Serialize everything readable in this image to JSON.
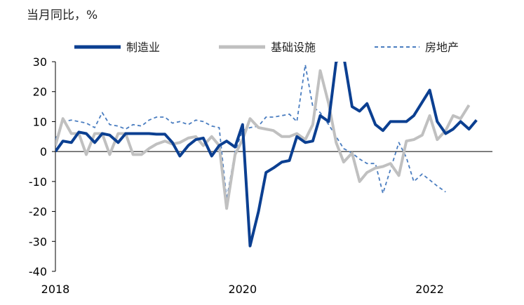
{
  "chart_data": {
    "type": "line",
    "title": "",
    "unit_label": "当月同比，%",
    "xlabel": "",
    "ylabel": "",
    "ylim": [
      -40,
      30
    ],
    "yticks": [
      30,
      20,
      10,
      0,
      -10,
      -20,
      -30,
      -40
    ],
    "xlim": [
      2018.0,
      2022.67
    ],
    "xticks": [
      {
        "value": 2018,
        "label": "2018"
      },
      {
        "value": 2020,
        "label": "2020"
      },
      {
        "value": 2022,
        "label": "2022"
      }
    ],
    "grid": false,
    "legend_position": "top",
    "series": [
      {
        "name": "制造业",
        "color": "#0b3f91",
        "style": "solid",
        "x": [
          2018.0,
          2018.08,
          2018.17,
          2018.25,
          2018.33,
          2018.42,
          2018.5,
          2018.58,
          2018.67,
          2018.75,
          2018.83,
          2018.92,
          2019.0,
          2019.08,
          2019.17,
          2019.25,
          2019.33,
          2019.42,
          2019.5,
          2019.58,
          2019.67,
          2019.75,
          2019.83,
          2019.92,
          2020.0,
          2020.08,
          2020.17,
          2020.25,
          2020.33,
          2020.42,
          2020.5,
          2020.58,
          2020.67,
          2020.75,
          2020.83,
          2020.92,
          2021.0,
          2021.08,
          2021.17,
          2021.25,
          2021.33,
          2021.42,
          2021.5,
          2021.58,
          2021.67,
          2021.75,
          2021.83,
          2021.92,
          2022.0,
          2022.08,
          2022.17,
          2022.25,
          2022.33,
          2022.42,
          2022.5,
          2022.58,
          2022.67
        ],
        "values": [
          0,
          3.5,
          3,
          6.5,
          6,
          3,
          6,
          5.5,
          3,
          6,
          6,
          6,
          6,
          5.8,
          5.8,
          3,
          -1.5,
          2,
          4,
          4.5,
          -1.5,
          2,
          3.5,
          1.5,
          9,
          -31.5,
          -20,
          -7,
          -5.5,
          -3.5,
          -3,
          5,
          3,
          3.5,
          12,
          10,
          30,
          32,
          15,
          13.5,
          16,
          9,
          7,
          10,
          10,
          10,
          12,
          16.5,
          20.5,
          10,
          6,
          7.5,
          10,
          7.5,
          10.5,
          null,
          null
        ]
      },
      {
        "name": "基础设施",
        "color": "#c0c0c0",
        "style": "solid",
        "x": [
          2018.0,
          2018.08,
          2018.17,
          2018.25,
          2018.33,
          2018.42,
          2018.5,
          2018.58,
          2018.67,
          2018.75,
          2018.83,
          2018.92,
          2019.0,
          2019.08,
          2019.17,
          2019.25,
          2019.33,
          2019.42,
          2019.5,
          2019.58,
          2019.67,
          2019.75,
          2019.83,
          2019.92,
          2020.0,
          2020.08,
          2020.17,
          2020.25,
          2020.33,
          2020.42,
          2020.5,
          2020.58,
          2020.67,
          2020.75,
          2020.83,
          2020.92,
          2021.0,
          2021.08,
          2021.17,
          2021.25,
          2021.33,
          2021.42,
          2021.5,
          2021.58,
          2021.67,
          2021.75,
          2021.83,
          2021.92,
          2022.0,
          2022.08,
          2022.17,
          2022.25,
          2022.33,
          2022.42,
          2022.5,
          2022.58,
          2022.67
        ],
        "values": [
          2,
          11,
          6,
          6,
          -1,
          6,
          6,
          -1,
          6,
          6,
          -1,
          -1,
          1,
          2.5,
          3.5,
          2.5,
          3,
          4.5,
          5,
          2,
          5,
          2,
          -19,
          -1,
          4,
          11,
          8,
          7.5,
          7,
          5,
          5,
          6,
          4,
          9,
          27,
          16,
          3,
          -3.5,
          -0.5,
          -10,
          -7,
          -5.5,
          -5,
          -4,
          -8,
          3.5,
          4,
          5.5,
          12,
          4,
          7,
          12,
          11,
          15.5,
          null,
          null,
          null
        ]
      },
      {
        "name": "房地产",
        "color": "#4a7dc0",
        "style": "dashed",
        "x": [
          2018.0,
          2018.08,
          2018.17,
          2018.25,
          2018.33,
          2018.42,
          2018.5,
          2018.58,
          2018.67,
          2018.75,
          2018.83,
          2018.92,
          2019.0,
          2019.08,
          2019.17,
          2019.25,
          2019.33,
          2019.42,
          2019.5,
          2019.58,
          2019.67,
          2019.75,
          2019.83,
          2019.92,
          2020.0,
          2020.08,
          2020.17,
          2020.25,
          2020.33,
          2020.42,
          2020.5,
          2020.58,
          2020.67,
          2020.75,
          2020.83,
          2020.92,
          2021.0,
          2021.08,
          2021.17,
          2021.25,
          2021.33,
          2021.42,
          2021.5,
          2021.58,
          2021.67,
          2021.75,
          2021.83,
          2021.92,
          2022.0,
          2022.08,
          2022.17,
          2022.25,
          2022.33,
          2022.42,
          2022.5,
          2022.58,
          2022.67
        ],
        "values": [
          4,
          10,
          10.5,
          10,
          9.5,
          8,
          13,
          9,
          8.5,
          7.5,
          9,
          8.5,
          10.5,
          11.5,
          11.5,
          9.5,
          10,
          9,
          10.5,
          10,
          8.5,
          8,
          -16,
          0,
          7,
          8,
          8.5,
          11.5,
          11.5,
          12,
          12.5,
          10,
          29,
          15,
          13,
          9,
          5,
          1,
          -0.5,
          -2.5,
          -4,
          -4,
          -14,
          -6,
          3,
          -2,
          -10,
          -7.5,
          -9.5,
          -11.5,
          -13.5,
          null,
          null,
          null,
          null,
          null,
          null
        ]
      }
    ]
  }
}
